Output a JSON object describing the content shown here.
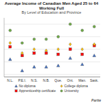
{
  "chart_data": {
    "type": "scatter",
    "title": "Average Income of Canadian Men Aged 25 to 64 Working Full",
    "subtitle": "By Level of Education and Province",
    "categories": [
      "N.L.",
      "P.E.I.",
      "N.S.",
      "N.B.",
      "Que.",
      "Ont.",
      "Man.",
      "Sask."
    ],
    "series": [
      {
        "name": "No diploma",
        "color": "#4472C4",
        "marker": "triangle",
        "values": [
          42,
          33,
          36,
          36,
          37,
          43,
          38,
          45
        ]
      },
      {
        "name": "Apprenticeship certificate",
        "color": "#FF0000",
        "marker": "square",
        "values": [
          52,
          45,
          47,
          47,
          46,
          50,
          46,
          53
        ]
      },
      {
        "name": "College diploma",
        "color": "#FFC000",
        "marker": "diamond",
        "values": [
          55,
          47,
          50,
          49,
          50,
          54,
          50,
          54
        ]
      },
      {
        "name": "University",
        "color": "#70AD47",
        "marker": "circle",
        "values": [
          65,
          55,
          58,
          58,
          60,
          70,
          65,
          68
        ]
      }
    ],
    "ylim": [
      28,
      75
    ],
    "yticks": [
      30,
      40,
      50,
      60,
      70
    ],
    "grid": true,
    "tick_labels": "x",
    "legend": "bottom",
    "annotations": [
      "Partie"
    ]
  }
}
